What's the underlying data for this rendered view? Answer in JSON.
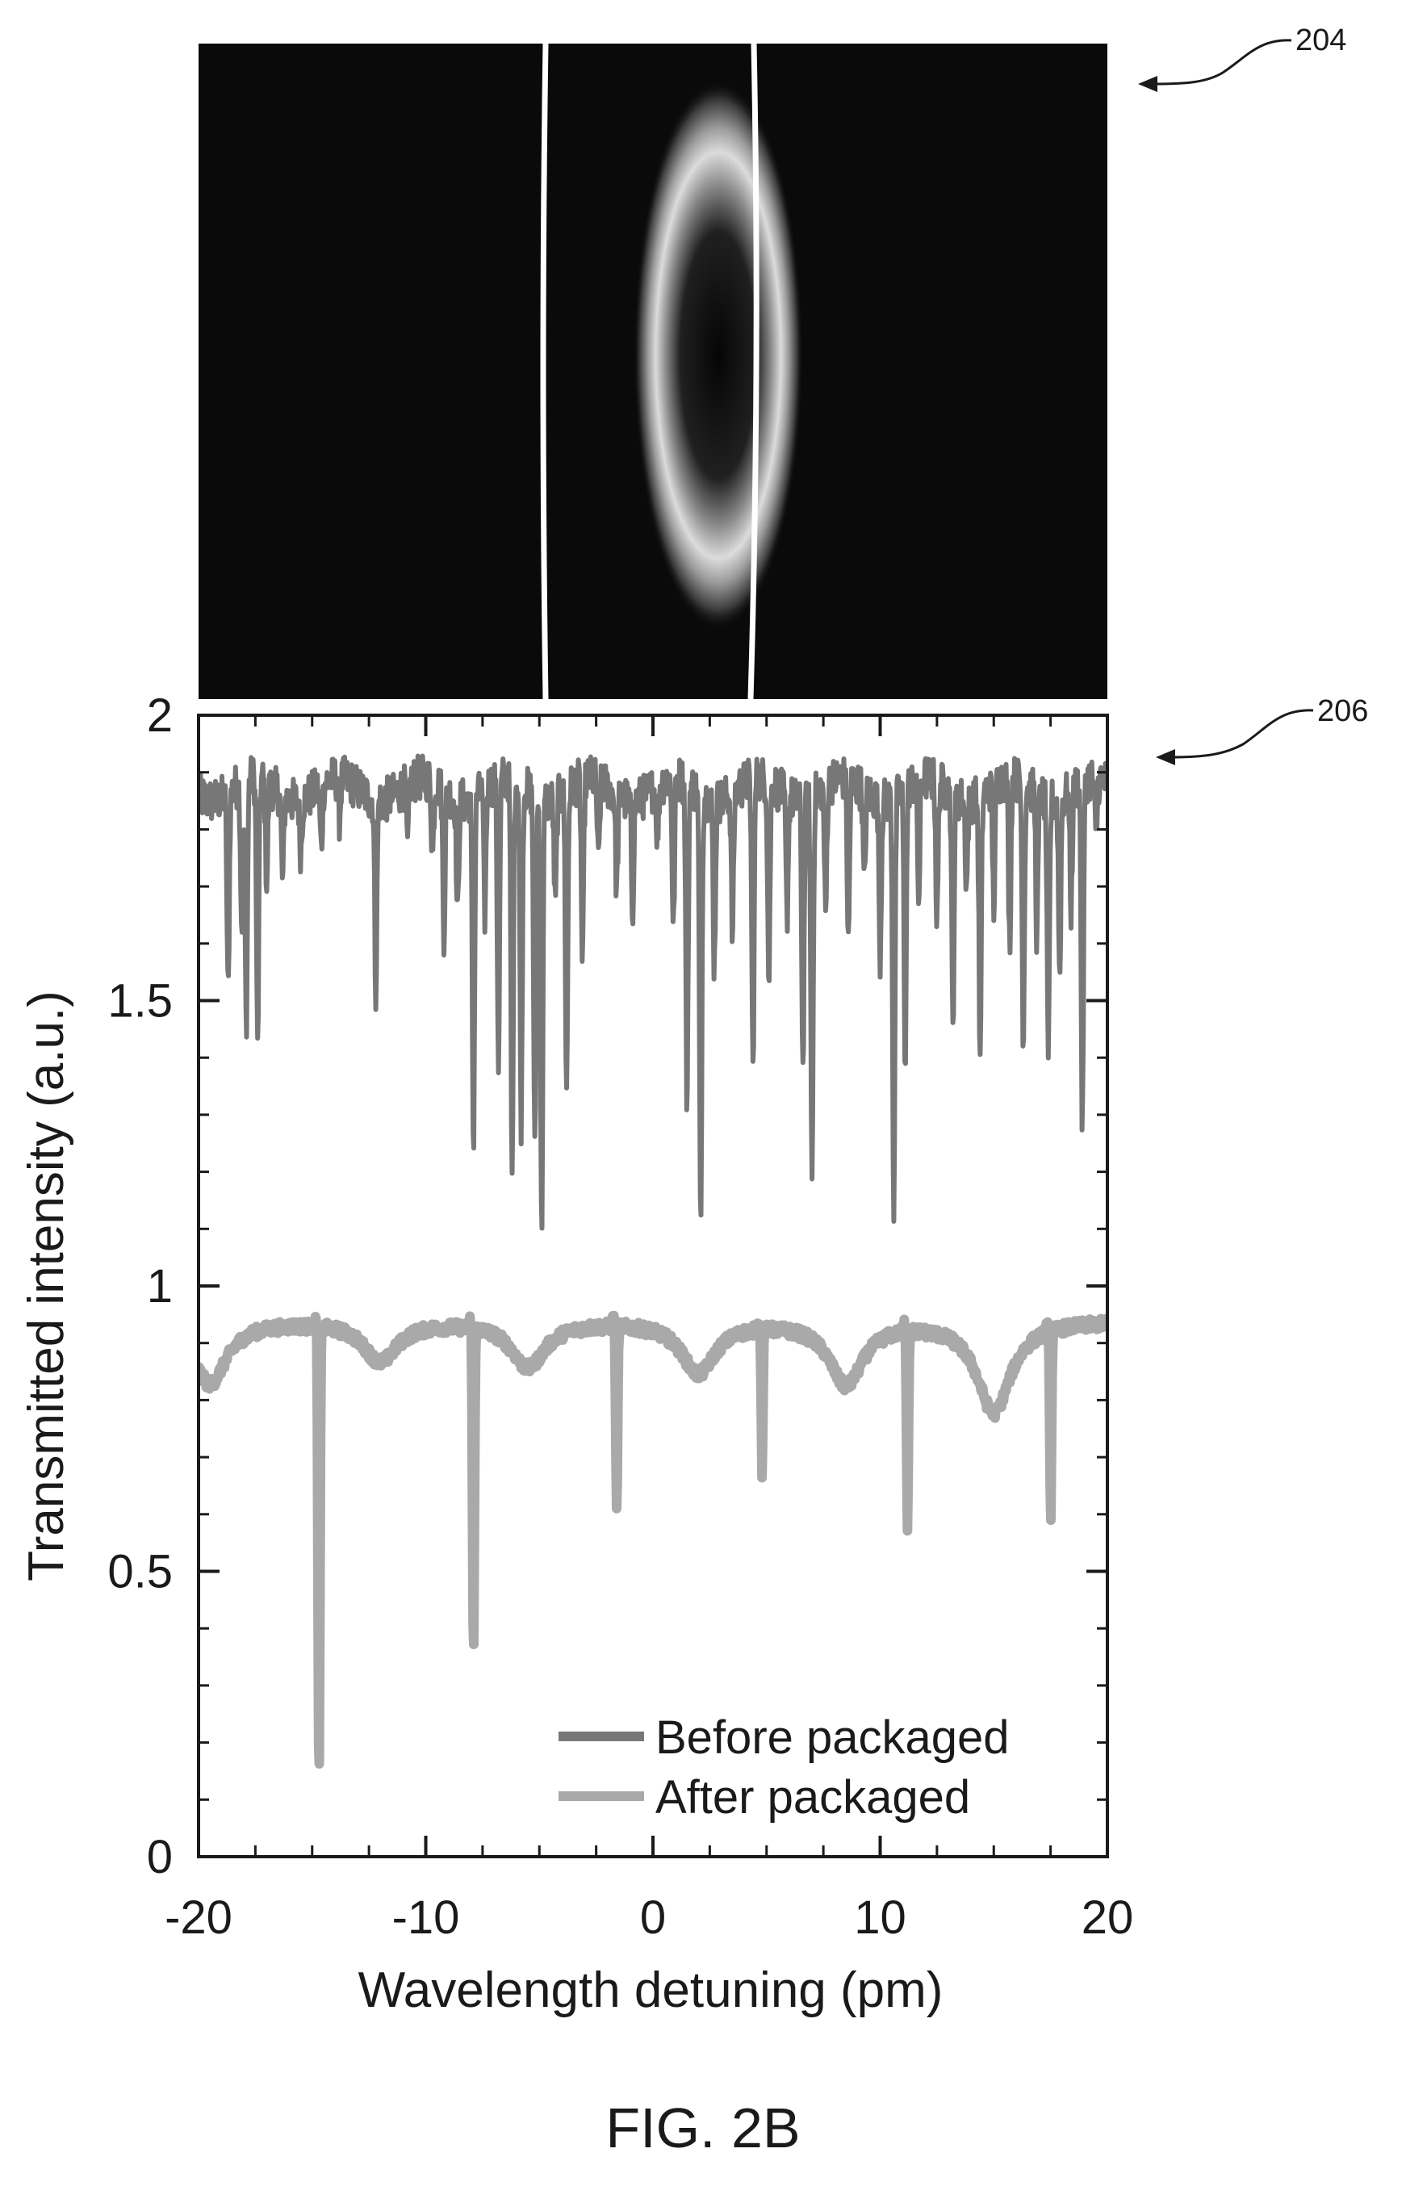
{
  "figure": {
    "caption": "FIG. 2B",
    "ref_top": "204",
    "ref_bottom": "206"
  },
  "image_panel": {
    "background_color": "#0a0a0a",
    "line_color": "#ffffff",
    "spot_color": "#ffffff"
  },
  "chart_data": {
    "type": "line",
    "title": "",
    "xlabel": "Wavelength detuning (pm)",
    "ylabel": "Transmitted intensity (a.u.)",
    "xlim": [
      -20,
      20
    ],
    "ylim": [
      0,
      2
    ],
    "xticks": [
      -20,
      -10,
      0,
      10,
      20
    ],
    "xtick_labels": [
      "-20",
      "-10",
      "0",
      "10",
      "20"
    ],
    "yticks": [
      0,
      0.5,
      1,
      1.5,
      2
    ],
    "ytick_labels": [
      "0",
      "0.5",
      "1",
      "1.5",
      "2"
    ],
    "grid": false,
    "legend_position": "bottom-right",
    "series": [
      {
        "name": "Before packaged",
        "color": "#777777",
        "baseline": 1.87,
        "baseline_end": 1.87,
        "dips": [
          {
            "x": -18.7,
            "y": 1.52
          },
          {
            "x": -18.1,
            "y": 1.62
          },
          {
            "x": -17.9,
            "y": 1.44
          },
          {
            "x": -17.4,
            "y": 1.4
          },
          {
            "x": -17.0,
            "y": 1.7
          },
          {
            "x": -16.3,
            "y": 1.72
          },
          {
            "x": -15.5,
            "y": 1.78
          },
          {
            "x": -14.6,
            "y": 1.76
          },
          {
            "x": -13.8,
            "y": 1.8
          },
          {
            "x": -12.2,
            "y": 1.54
          },
          {
            "x": -10.8,
            "y": 1.76
          },
          {
            "x": -9.7,
            "y": 1.74
          },
          {
            "x": -9.2,
            "y": 1.62
          },
          {
            "x": -8.6,
            "y": 1.66
          },
          {
            "x": -7.9,
            "y": 1.26
          },
          {
            "x": -7.4,
            "y": 1.65
          },
          {
            "x": -6.8,
            "y": 1.38
          },
          {
            "x": -6.2,
            "y": 1.16
          },
          {
            "x": -5.8,
            "y": 1.28
          },
          {
            "x": -5.2,
            "y": 1.24
          },
          {
            "x": -4.9,
            "y": 1.11
          },
          {
            "x": -4.3,
            "y": 1.68
          },
          {
            "x": -3.8,
            "y": 1.34
          },
          {
            "x": -3.1,
            "y": 1.54
          },
          {
            "x": -2.4,
            "y": 1.72
          },
          {
            "x": -1.6,
            "y": 1.7
          },
          {
            "x": -0.9,
            "y": 1.68
          },
          {
            "x": 0.2,
            "y": 1.78
          },
          {
            "x": 0.9,
            "y": 1.6
          },
          {
            "x": 1.5,
            "y": 1.3
          },
          {
            "x": 2.1,
            "y": 1.1
          },
          {
            "x": 2.7,
            "y": 1.58
          },
          {
            "x": 3.5,
            "y": 1.62
          },
          {
            "x": 4.4,
            "y": 1.36
          },
          {
            "x": 5.1,
            "y": 1.52
          },
          {
            "x": 5.9,
            "y": 1.66
          },
          {
            "x": 6.6,
            "y": 1.4
          },
          {
            "x": 7.0,
            "y": 1.21
          },
          {
            "x": 7.6,
            "y": 1.64
          },
          {
            "x": 8.6,
            "y": 1.58
          },
          {
            "x": 9.3,
            "y": 1.7
          },
          {
            "x": 10.0,
            "y": 1.6
          },
          {
            "x": 10.6,
            "y": 1.15
          },
          {
            "x": 11.1,
            "y": 1.4
          },
          {
            "x": 11.7,
            "y": 1.66
          },
          {
            "x": 12.5,
            "y": 1.62
          },
          {
            "x": 13.2,
            "y": 1.46
          },
          {
            "x": 13.8,
            "y": 1.72
          },
          {
            "x": 14.4,
            "y": 1.4
          },
          {
            "x": 15.0,
            "y": 1.66
          },
          {
            "x": 15.7,
            "y": 1.58
          },
          {
            "x": 16.3,
            "y": 1.43
          },
          {
            "x": 16.9,
            "y": 1.62
          },
          {
            "x": 17.4,
            "y": 1.4
          },
          {
            "x": 17.9,
            "y": 1.56
          },
          {
            "x": 18.4,
            "y": 1.66
          },
          {
            "x": 18.9,
            "y": 1.26
          },
          {
            "x": 19.5,
            "y": 1.76
          }
        ]
      },
      {
        "name": "After packaged",
        "color": "#a9a9a9",
        "baseline": 0.94,
        "baseline_end": 0.94,
        "dips": [
          {
            "x": -14.7,
            "y": 0.12
          },
          {
            "x": -7.9,
            "y": 0.35
          },
          {
            "x": -1.6,
            "y": 0.59
          },
          {
            "x": 4.8,
            "y": 0.69
          },
          {
            "x": 11.2,
            "y": 0.6
          },
          {
            "x": 17.5,
            "y": 0.6
          }
        ],
        "broad_dips": [
          {
            "x": -19.5,
            "y": 0.83
          },
          {
            "x": -12.0,
            "y": 0.87
          },
          {
            "x": -5.5,
            "y": 0.86
          },
          {
            "x": 2.0,
            "y": 0.85
          },
          {
            "x": 8.5,
            "y": 0.83
          },
          {
            "x": 15.0,
            "y": 0.78
          }
        ]
      }
    ]
  }
}
